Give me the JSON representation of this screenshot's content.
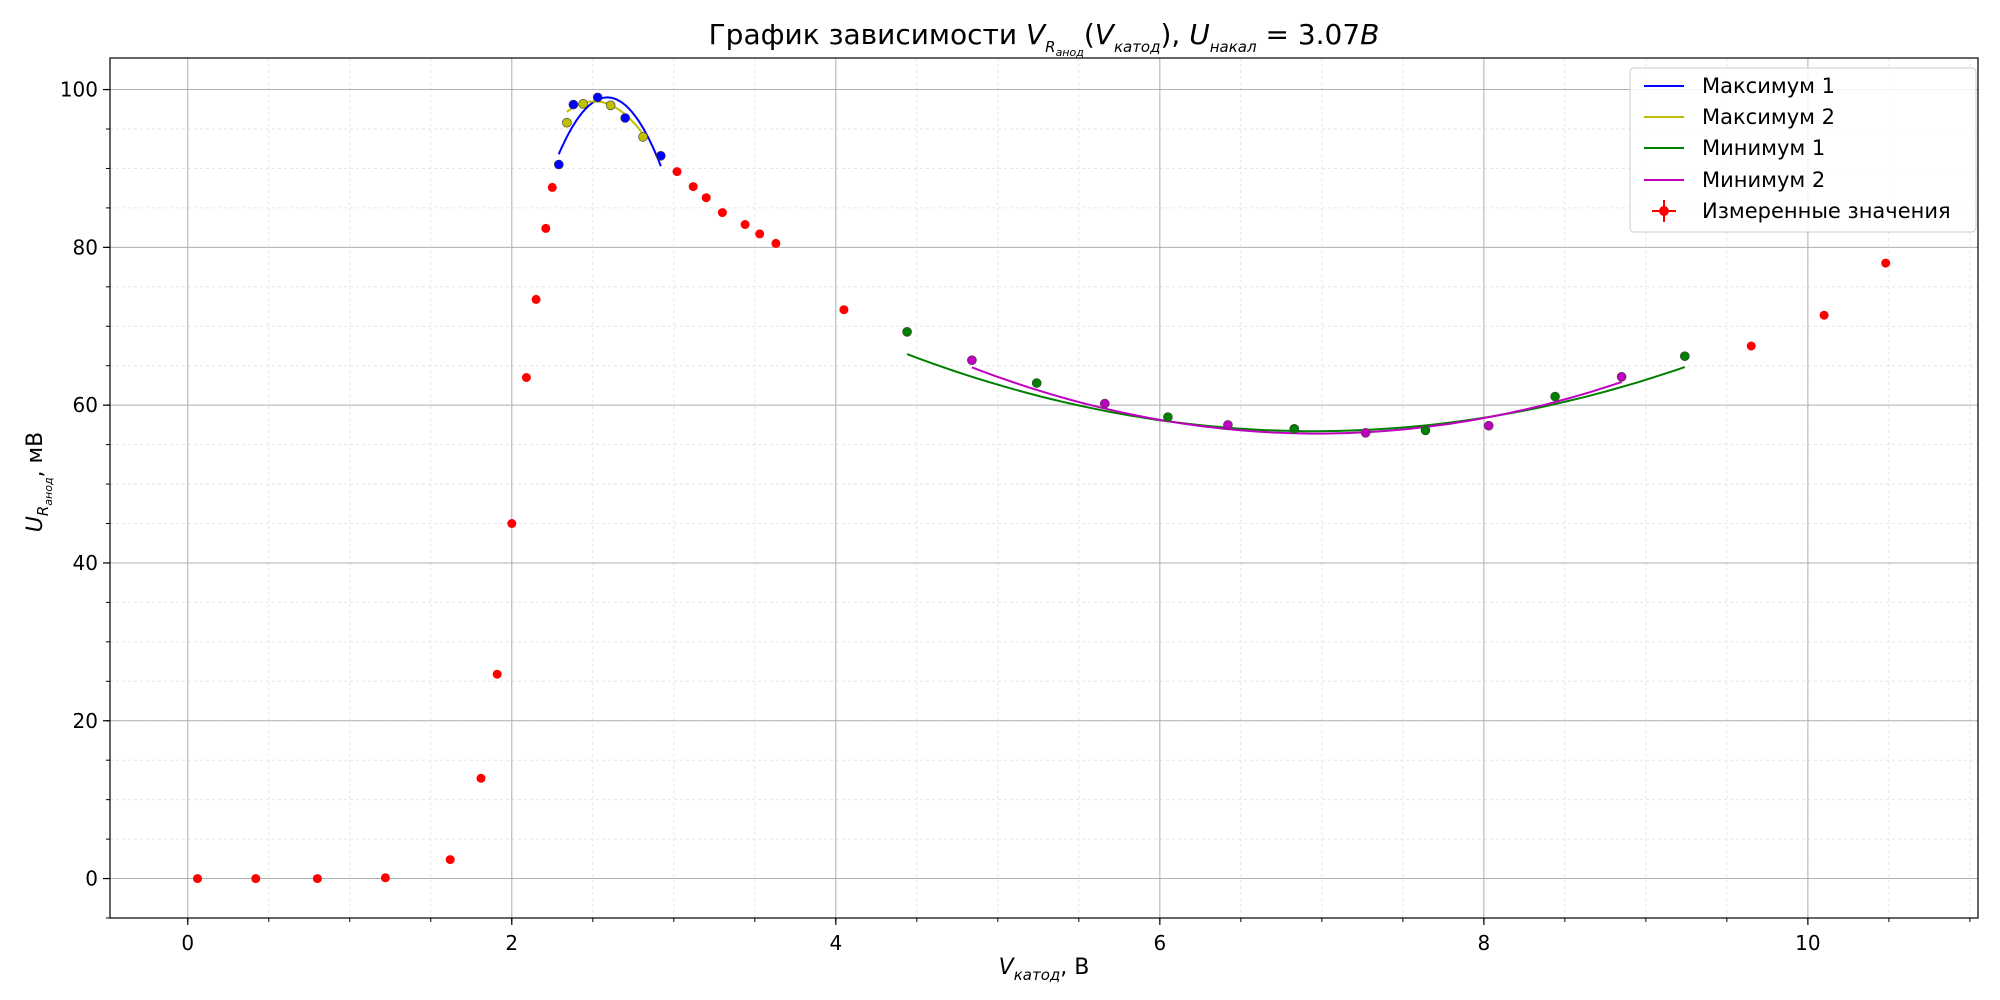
{
  "chart_data": {
    "type": "scatter",
    "title": {
      "prefix": "График зависимости ",
      "var1": "V",
      "var1_sub": "R",
      "var1_subsub": "анод",
      "open": "(",
      "var2": "V",
      "var2_sub": "катод",
      "close": "), ",
      "var3": "U",
      "var3_sub": "накал",
      "eq": " = 3.07",
      "unit": "В"
    },
    "xlabel": {
      "var": "V",
      "sub": "катод",
      "rest": ", В"
    },
    "ylabel": {
      "var": "U",
      "sub": "R",
      "subsub": "анод",
      "rest": ", мВ"
    },
    "xlim": [
      -0.48,
      11.05
    ],
    "ylim": [
      -5,
      104
    ],
    "x_ticks": [
      0,
      2,
      4,
      6,
      8,
      10
    ],
    "y_ticks": [
      0,
      20,
      40,
      60,
      80,
      100
    ],
    "x_minor_step": 0.5,
    "y_minor_step": 5,
    "grid": true,
    "legend_position": "top-right",
    "measured": {
      "name": "Измеренные значения",
      "color": "#ff0000",
      "points": [
        [
          0.06,
          0
        ],
        [
          0.42,
          0
        ],
        [
          0.8,
          0
        ],
        [
          1.22,
          0.1
        ],
        [
          1.62,
          2.4
        ],
        [
          1.81,
          12.7
        ],
        [
          1.91,
          25.9
        ],
        [
          2.0,
          45.0
        ],
        [
          2.09,
          63.5
        ],
        [
          2.15,
          73.4
        ],
        [
          2.21,
          82.4
        ],
        [
          2.25,
          87.6
        ],
        [
          2.29,
          90.5
        ],
        [
          2.34,
          95.8
        ],
        [
          2.38,
          98.1
        ],
        [
          2.44,
          98.2
        ],
        [
          2.53,
          99.0
        ],
        [
          2.61,
          98.0
        ],
        [
          2.7,
          96.4
        ],
        [
          2.81,
          94.0
        ],
        [
          2.92,
          91.6
        ],
        [
          3.02,
          89.6
        ],
        [
          3.12,
          87.7
        ],
        [
          3.2,
          86.3
        ],
        [
          3.3,
          84.4
        ],
        [
          3.44,
          82.9
        ],
        [
          3.53,
          81.7
        ],
        [
          3.63,
          80.5
        ],
        [
          4.05,
          72.1
        ],
        [
          4.44,
          69.3
        ],
        [
          4.84,
          65.7
        ],
        [
          5.24,
          62.8
        ],
        [
          5.66,
          60.2
        ],
        [
          6.05,
          58.5
        ],
        [
          6.42,
          57.5
        ],
        [
          6.83,
          57.0
        ],
        [
          7.27,
          56.5
        ],
        [
          7.64,
          56.8
        ],
        [
          8.03,
          57.4
        ],
        [
          8.44,
          61.1
        ],
        [
          8.85,
          63.6
        ],
        [
          9.24,
          66.2
        ],
        [
          9.65,
          67.5
        ],
        [
          10.1,
          71.4
        ],
        [
          10.48,
          78.0
        ]
      ]
    },
    "series": [
      {
        "name": "Максимум 1",
        "color": "#0000ff",
        "fit": {
          "vertex_x": 2.59,
          "vertex_y": 99.0,
          "a": -80.0,
          "x_range": [
            2.29,
            2.92
          ]
        },
        "points": [
          [
            2.29,
            90.5
          ],
          [
            2.38,
            98.1
          ],
          [
            2.53,
            99.0
          ],
          [
            2.7,
            96.4
          ],
          [
            2.92,
            91.6
          ]
        ]
      },
      {
        "name": "Максимум 2",
        "color": "#bfbf00",
        "fit": {
          "vertex_x": 2.51,
          "vertex_y": 98.5,
          "a": -46.0,
          "x_range": [
            2.34,
            2.81
          ]
        },
        "points": [
          [
            2.34,
            95.8
          ],
          [
            2.44,
            98.2
          ],
          [
            2.61,
            98.0
          ],
          [
            2.81,
            94.0
          ]
        ]
      },
      {
        "name": "Минимум 1",
        "color": "#008000",
        "fit": {
          "vertex_x": 6.95,
          "vertex_y": 56.7,
          "a": 1.55,
          "x_range": [
            4.44,
            9.24
          ]
        },
        "points": [
          [
            4.44,
            69.3
          ],
          [
            5.24,
            62.8
          ],
          [
            6.05,
            58.5
          ],
          [
            6.83,
            57.0
          ],
          [
            7.64,
            56.8
          ],
          [
            8.44,
            61.1
          ],
          [
            9.24,
            66.2
          ]
        ]
      },
      {
        "name": "Минимум 2",
        "color": "#bf00bf",
        "fit": {
          "vertex_x": 6.97,
          "vertex_y": 56.4,
          "a": 1.85,
          "x_range": [
            4.84,
            8.85
          ]
        },
        "points": [
          [
            4.84,
            65.7
          ],
          [
            5.66,
            60.2
          ],
          [
            6.42,
            57.5
          ],
          [
            7.27,
            56.5
          ],
          [
            8.03,
            57.4
          ],
          [
            8.85,
            63.6
          ]
        ]
      }
    ]
  }
}
